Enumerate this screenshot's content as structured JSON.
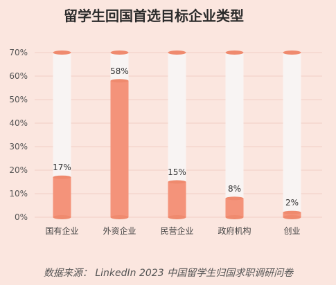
{
  "chart_data": {
    "type": "bar",
    "title": "留学生回国首选目标企业类型",
    "categories": [
      "国有企业",
      "外资企业",
      "民营企业",
      "政府机构",
      "创业"
    ],
    "values": [
      17,
      58,
      15,
      8,
      2
    ],
    "value_labels": [
      "17%",
      "58%",
      "15%",
      "8%",
      "2%"
    ],
    "ylim": [
      0,
      70
    ],
    "yticks": [
      0,
      10,
      20,
      30,
      40,
      50,
      60,
      70
    ],
    "ytick_labels": [
      "0%",
      "10%",
      "20%",
      "30%",
      "40%",
      "50%",
      "60%",
      "70%"
    ],
    "grid": true,
    "legend": "none",
    "source": "数据来源： LinkedIn 2023 中国留学生归国求职调研问卷"
  },
  "colors": {
    "background": "#fbe6df",
    "bar_fill": "#f4937a",
    "bar_edge": "#ef8a6e",
    "track_fill": "#f8f4f3",
    "grid": "#f2cfc5"
  }
}
